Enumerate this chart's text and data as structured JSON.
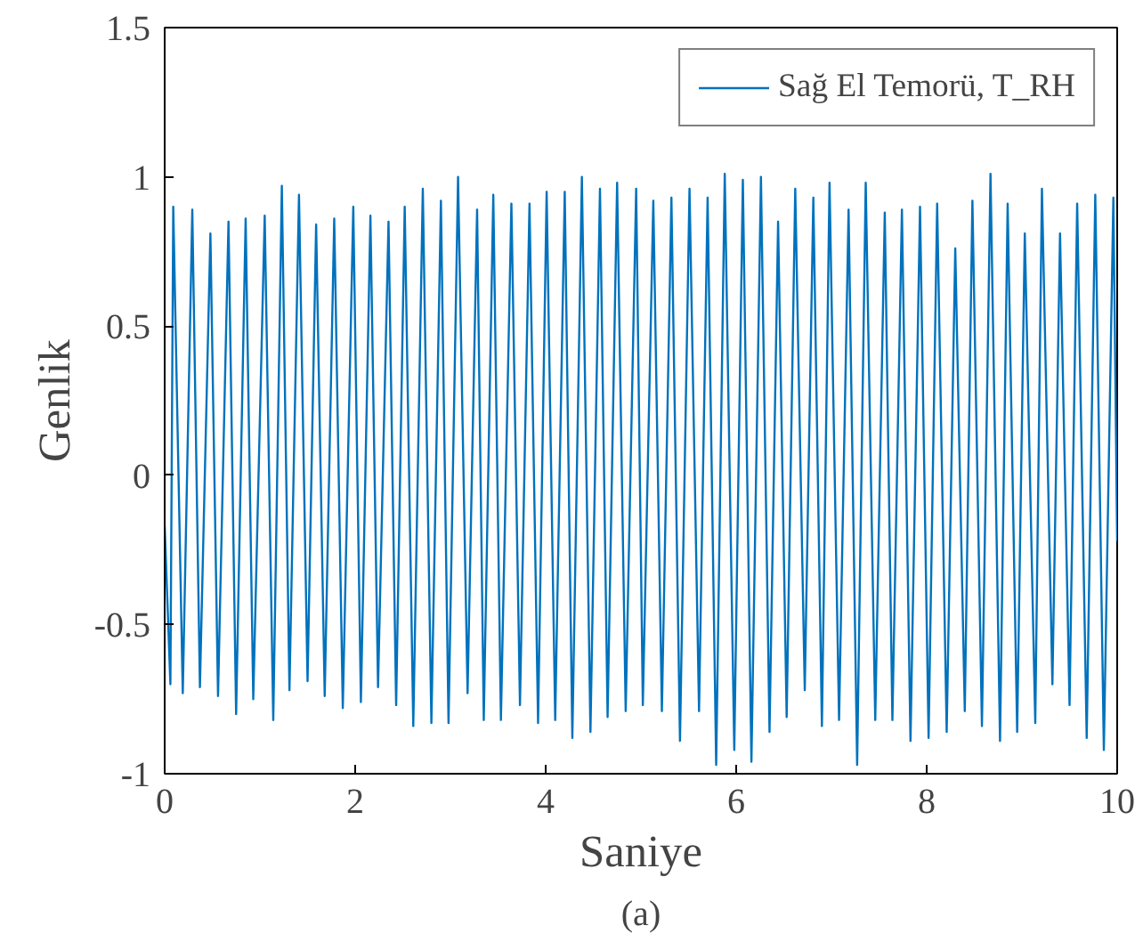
{
  "chart_data": {
    "type": "line",
    "xlabel": "Saniye",
    "ylabel": "Genlik",
    "annotations": [
      "(a)"
    ],
    "xlim": [
      0,
      10
    ],
    "ylim": [
      -1,
      1.5
    ],
    "xticks": [
      0,
      2,
      4,
      6,
      8,
      10
    ],
    "yticks": [
      -1,
      -0.5,
      0,
      0.5,
      1,
      1.5
    ],
    "grid": false,
    "legend": "top right",
    "line_style": "solid",
    "series": [
      {
        "name": "Sağ El Temorü, T_RH",
        "color": "#0072bd",
        "x": [
          0,
          0.06,
          0.09,
          0.19,
          0.29,
          0.37,
          0.48,
          0.56,
          0.67,
          0.75,
          0.85,
          0.93,
          1.05,
          1.14,
          1.23,
          1.31,
          1.41,
          1.5,
          1.59,
          1.68,
          1.78,
          1.87,
          1.98,
          2.06,
          2.16,
          2.24,
          2.35,
          2.43,
          2.52,
          2.61,
          2.71,
          2.8,
          2.9,
          2.98,
          3.08,
          3.18,
          3.28,
          3.35,
          3.45,
          3.53,
          3.64,
          3.73,
          3.83,
          3.92,
          4.01,
          4.1,
          4.2,
          4.28,
          4.38,
          4.47,
          4.57,
          4.65,
          4.75,
          4.84,
          4.95,
          5.02,
          5.13,
          5.22,
          5.32,
          5.41,
          5.51,
          5.61,
          5.7,
          5.79,
          5.88,
          5.98,
          6.07,
          6.16,
          6.26,
          6.35,
          6.44,
          6.53,
          6.62,
          6.72,
          6.81,
          6.9,
          6.98,
          7.08,
          7.18,
          7.27,
          7.36,
          7.46,
          7.56,
          7.64,
          7.74,
          7.83,
          7.93,
          8.02,
          8.11,
          8.21,
          8.3,
          8.4,
          8.48,
          8.58,
          8.67,
          8.77,
          8.85,
          8.95,
          9.03,
          9.14,
          9.21,
          9.32,
          9.4,
          9.5,
          9.58,
          9.68,
          9.77,
          9.86,
          9.96,
          10
        ],
        "values": [
          -0.17,
          -0.7,
          0.9,
          -0.73,
          0.89,
          -0.71,
          0.81,
          -0.74,
          0.85,
          -0.8,
          0.86,
          -0.75,
          0.87,
          -0.82,
          0.97,
          -0.72,
          0.94,
          -0.69,
          0.84,
          -0.74,
          0.86,
          -0.78,
          0.9,
          -0.76,
          0.87,
          -0.71,
          0.85,
          -0.77,
          0.9,
          -0.84,
          0.96,
          -0.83,
          0.92,
          -0.83,
          1.0,
          -0.73,
          0.89,
          -0.82,
          0.94,
          -0.82,
          0.91,
          -0.77,
          0.91,
          -0.83,
          0.95,
          -0.82,
          0.95,
          -0.88,
          1.0,
          -0.86,
          0.96,
          -0.81,
          0.98,
          -0.79,
          0.96,
          -0.77,
          0.92,
          -0.79,
          0.93,
          -0.89,
          0.96,
          -0.79,
          0.93,
          -0.97,
          1.01,
          -0.92,
          0.99,
          -0.96,
          1.0,
          -0.86,
          0.85,
          -0.81,
          0.96,
          -0.72,
          0.93,
          -0.84,
          0.98,
          -0.82,
          0.89,
          -0.97,
          0.98,
          -0.82,
          0.88,
          -0.82,
          0.89,
          -0.89,
          0.9,
          -0.88,
          0.91,
          -0.86,
          0.76,
          -0.79,
          0.92,
          -0.84,
          1.01,
          -0.89,
          0.91,
          -0.86,
          0.81,
          -0.83,
          0.96,
          -0.7,
          0.81,
          -0.77,
          0.91,
          -0.88,
          0.94,
          -0.92,
          0.93,
          -0.22
        ]
      }
    ]
  }
}
